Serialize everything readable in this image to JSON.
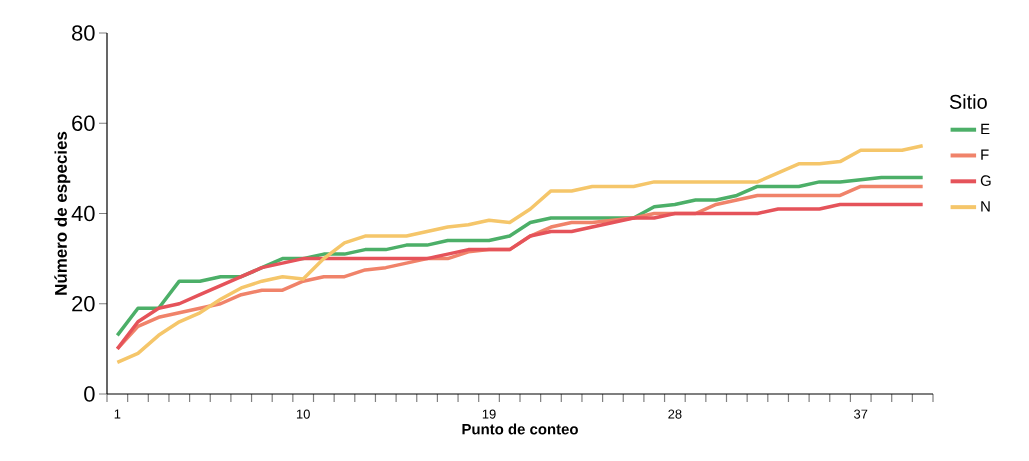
{
  "chart_data": {
    "type": "line",
    "xlabel": "Punto de conteo",
    "ylabel": "Número de especies",
    "legend_title": "Sitio",
    "categories": [
      "1",
      null,
      null,
      null,
      null,
      null,
      null,
      null,
      null,
      "10",
      null,
      null,
      null,
      null,
      null,
      null,
      null,
      null,
      "19",
      null,
      null,
      null,
      null,
      null,
      null,
      null,
      null,
      "28",
      null,
      null,
      null,
      null,
      null,
      null,
      null,
      null,
      "37",
      null,
      null,
      null
    ],
    "ylim": [
      0,
      80
    ],
    "yticks": [
      0,
      20,
      40,
      60,
      80
    ],
    "grid": false,
    "legend": "right",
    "marker": "none",
    "line_style": "solid",
    "series": [
      {
        "name": "E",
        "color": "#4caf68",
        "values": [
          13,
          19,
          19,
          25,
          25,
          26,
          26,
          28,
          30,
          30,
          31,
          31,
          32,
          32,
          33,
          33,
          34,
          34,
          34,
          35,
          38,
          39,
          39,
          39,
          39,
          39,
          41.5,
          42,
          43,
          43,
          44,
          46,
          46,
          46,
          47,
          47,
          47.5,
          48,
          48,
          48
        ]
      },
      {
        "name": "F",
        "color": "#f0836a",
        "values": [
          10,
          15,
          17,
          18,
          19,
          20,
          22,
          23,
          23,
          25,
          26,
          26,
          27.5,
          28,
          29,
          30,
          30,
          31.5,
          32,
          32,
          35,
          37,
          38,
          38,
          38.5,
          39,
          40,
          40,
          40,
          42,
          43,
          44,
          44,
          44,
          44,
          44,
          46,
          46,
          46,
          46
        ]
      },
      {
        "name": "G",
        "color": "#e5535a",
        "values": [
          10,
          16,
          19,
          20,
          22,
          24,
          26,
          28,
          29,
          30,
          30,
          30,
          30,
          30,
          30,
          30,
          31,
          32,
          32,
          32,
          35,
          36,
          36,
          37,
          38,
          39,
          39,
          40,
          40,
          40,
          40,
          40,
          41,
          41,
          41,
          42,
          42,
          42,
          42,
          42
        ]
      },
      {
        "name": "N",
        "color": "#f5c66a",
        "values": [
          7,
          9,
          13,
          16,
          18,
          21,
          23.5,
          25,
          26,
          25.5,
          30,
          33.5,
          35,
          35,
          35,
          36,
          37,
          37.5,
          38.5,
          38,
          41,
          45,
          45,
          46,
          46,
          46,
          47,
          47,
          47,
          47,
          47,
          47,
          49,
          51,
          51,
          51.5,
          54,
          54,
          54,
          55
        ]
      }
    ]
  }
}
